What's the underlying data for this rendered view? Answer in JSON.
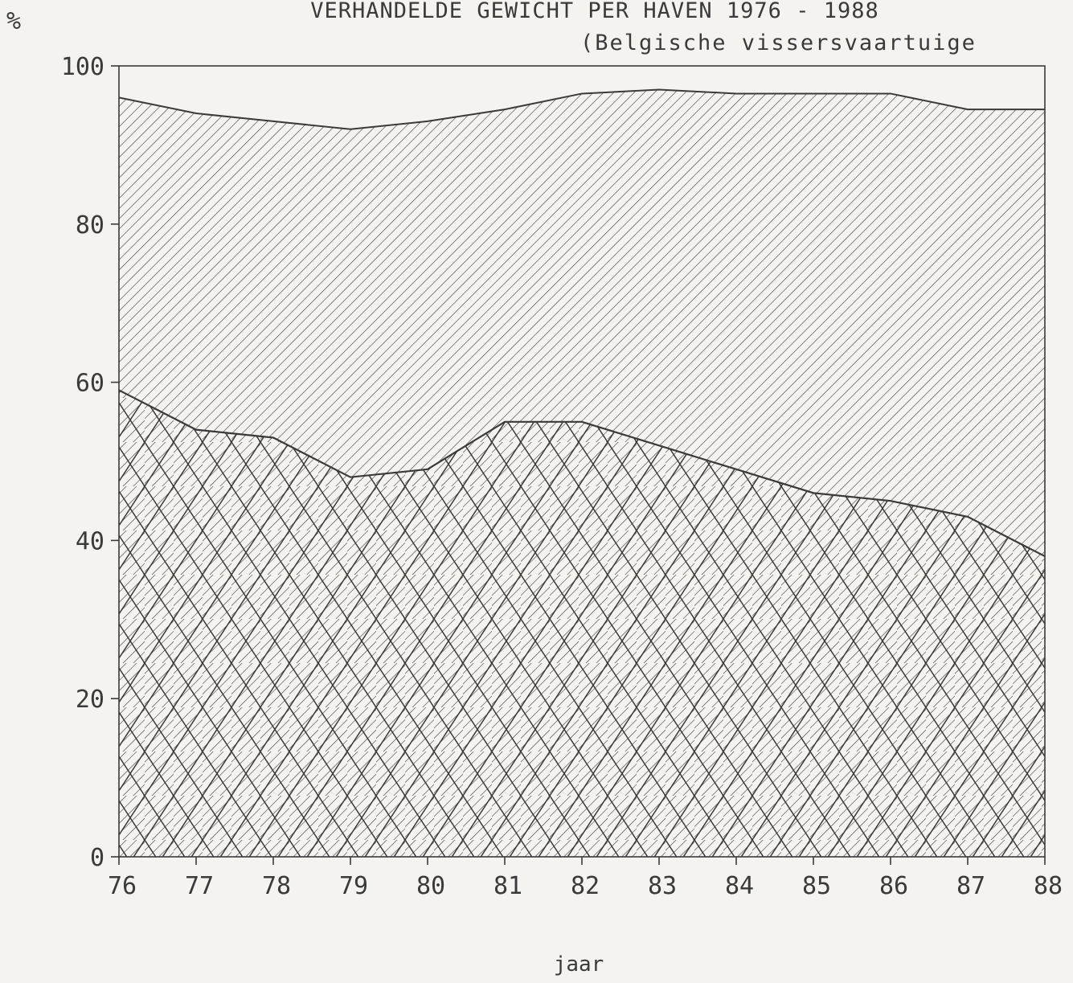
{
  "chart_data": {
    "type": "area",
    "stacked": true,
    "title": "VERHANDELDE GEWICHT PER HAVEN 1976 - 1988",
    "subtitle": "(Belgische vissersvaartuige",
    "ylabel": "%",
    "xlabel": "jaar",
    "x": [
      76,
      77,
      78,
      79,
      80,
      81,
      82,
      83,
      84,
      85,
      86,
      87,
      88
    ],
    "x_tick_labels": [
      "76",
      "77",
      "78",
      "79",
      "80",
      "81",
      "82",
      "83",
      "84",
      "85",
      "86",
      "87",
      "88"
    ],
    "y_tick_labels": [
      "0",
      "20",
      "40",
      "60",
      "80",
      "100"
    ],
    "ylim": [
      0,
      100
    ],
    "grid": false,
    "series": [
      {
        "pattern": "crosshatch",
        "values": [
          59,
          54,
          53,
          48,
          49,
          55,
          55,
          52,
          49,
          46,
          45,
          43,
          38
        ]
      },
      {
        "pattern": "diagonal-hatch",
        "top_values": [
          96,
          94,
          93,
          92,
          93,
          94.5,
          96.5,
          97,
          96.5,
          96.5,
          96.5,
          94.5,
          94.5
        ]
      }
    ],
    "colors": {
      "line": "#3a3a3a",
      "background": "#f4f3ef"
    }
  }
}
